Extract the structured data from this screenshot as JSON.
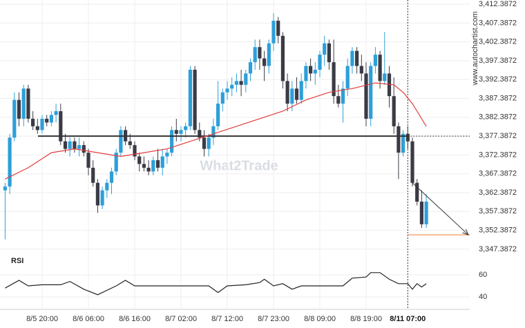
{
  "chart_data": {
    "type": "candlestick",
    "categories": [
      null,
      null,
      null,
      null,
      null,
      null,
      null,
      null,
      "8/5 20:00",
      null,
      null,
      null,
      null,
      null,
      null,
      null,
      null,
      null,
      "8/6 06:00",
      null,
      null,
      null,
      null,
      null,
      null,
      null,
      null,
      null,
      "8/6 16:00",
      null,
      null,
      null,
      null,
      null,
      null,
      null,
      null,
      null,
      "8/7 02:00",
      null,
      null,
      null,
      null,
      null,
      null,
      null,
      null,
      null,
      "8/7 12:00",
      null,
      null,
      null,
      null,
      null,
      null,
      null,
      null,
      null,
      "8/7 23:00",
      null,
      null,
      null,
      null,
      null,
      null,
      null,
      null,
      null,
      "8/8 09:00",
      null,
      null,
      null,
      null,
      null,
      null,
      null,
      null,
      null,
      "8/8 19:00",
      null,
      null,
      null,
      null,
      null,
      null,
      null,
      null,
      "8/11 07:00",
      null,
      null,
      null,
      null
    ],
    "open": [
      3363,
      3364,
      3377,
      3387,
      3382,
      3390,
      3382,
      3380,
      3379,
      3382,
      3381,
      3383,
      3384,
      3376,
      3374,
      3376,
      3374,
      3375,
      3373,
      3369,
      3365,
      3359,
      3363,
      3365,
      3368,
      3373,
      3379,
      3376,
      3375,
      3372,
      3370,
      3369,
      3368,
      3371,
      3369,
      3372,
      3373,
      3379,
      3378,
      3379,
      3380,
      3395,
      3379,
      3377,
      3374,
      3377,
      3380,
      3386,
      3389,
      3390,
      3391,
      3392,
      3391,
      3394,
      3397,
      3401,
      3398,
      3396,
      3402,
      3408,
      3404,
      3392,
      3386,
      3390,
      3387,
      3392,
      3396,
      3394,
      3395,
      3399,
      3402,
      3397,
      3388,
      3386,
      3390,
      3396,
      3400,
      3396,
      3394,
      3382,
      3396,
      3399,
      3392,
      3394,
      3388,
      3380,
      3373,
      3378,
      3376,
      3365,
      3360,
      3354
    ],
    "high": [
      3365,
      3378,
      3389,
      3389,
      3391,
      3391,
      3384,
      3382,
      3383,
      3383,
      3384,
      3386,
      3386,
      3378,
      3377,
      3377,
      3377,
      3376,
      3374,
      3371,
      3366,
      3364,
      3366,
      3369,
      3374,
      3380,
      3380,
      3378,
      3376,
      3373,
      3372,
      3371,
      3372,
      3374,
      3374,
      3374,
      3380,
      3382,
      3380,
      3381,
      3396,
      3396,
      3381,
      3379,
      3378,
      3382,
      3392,
      3390,
      3392,
      3393,
      3394,
      3395,
      3395,
      3398,
      3403,
      3403,
      3400,
      3403,
      3410,
      3409,
      3405,
      3394,
      3392,
      3393,
      3394,
      3397,
      3398,
      3397,
      3400,
      3404,
      3403,
      3403,
      3391,
      3392,
      3398,
      3401,
      3401,
      3399,
      3397,
      3397,
      3401,
      3400,
      3405,
      3396,
      3393,
      3381,
      3379,
      3380,
      3377,
      3366,
      3363,
      3362
    ],
    "low": [
      3350,
      3362,
      3376,
      3380,
      3380,
      3381,
      3379,
      3378,
      3378,
      3380,
      3380,
      3381,
      3375,
      3373,
      3372,
      3373,
      3372,
      3372,
      3367,
      3364,
      3357,
      3358,
      3361,
      3362,
      3367,
      3372,
      3375,
      3374,
      3371,
      3368,
      3368,
      3367,
      3367,
      3368,
      3367,
      3370,
      3372,
      3376,
      3376,
      3377,
      3379,
      3378,
      3376,
      3372,
      3372,
      3375,
      3379,
      3384,
      3387,
      3388,
      3389,
      3388,
      3389,
      3392,
      3395,
      3395,
      3392,
      3394,
      3400,
      3402,
      3390,
      3384,
      3384,
      3386,
      3386,
      3390,
      3392,
      3391,
      3393,
      3396,
      3395,
      3386,
      3385,
      3381,
      3388,
      3394,
      3394,
      3392,
      3380,
      3380,
      3394,
      3390,
      3391,
      3385,
      3378,
      3366,
      3372,
      3374,
      3364,
      3359,
      3353,
      3353
    ],
    "close": [
      3364,
      3377,
      3387,
      3382,
      3390,
      3382,
      3380,
      3379,
      3382,
      3381,
      3383,
      3384,
      3376,
      3374,
      3376,
      3374,
      3375,
      3373,
      3369,
      3365,
      3359,
      3363,
      3365,
      3368,
      3373,
      3379,
      3376,
      3375,
      3372,
      3370,
      3369,
      3368,
      3371,
      3369,
      3372,
      3373,
      3379,
      3378,
      3379,
      3380,
      3395,
      3379,
      3377,
      3374,
      3377,
      3380,
      3386,
      3389,
      3390,
      3391,
      3392,
      3391,
      3394,
      3397,
      3401,
      3398,
      3396,
      3402,
      3408,
      3404,
      3392,
      3386,
      3390,
      3387,
      3392,
      3396,
      3394,
      3395,
      3399,
      3402,
      3397,
      3388,
      3386,
      3390,
      3396,
      3400,
      3396,
      3394,
      3382,
      3396,
      3399,
      3392,
      3394,
      3388,
      3380,
      3373,
      3378,
      3376,
      3365,
      3360,
      3354,
      3360
    ],
    "up_color": "#2d9fd9",
    "down_color": "#3b3b45",
    "ema": {
      "color": "#e23b3b",
      "x": [
        0,
        5,
        10,
        15,
        20,
        25,
        30,
        35,
        40,
        45,
        50,
        55,
        60,
        65,
        70,
        75,
        80,
        84,
        86,
        88,
        91
      ],
      "values": [
        3366,
        3369,
        3373,
        3374,
        3373,
        3372,
        3373,
        3374,
        3376,
        3378,
        3380,
        3382,
        3384,
        3387,
        3389,
        3390,
        3391.5,
        3391,
        3389,
        3386,
        3380
      ]
    },
    "resistance": 3377.3872,
    "target": 3351.2,
    "target_color": "#f08a4b",
    "ylim": [
      3344.8,
      3413.5
    ],
    "yticks": [
      {
        "value": 3412.3872,
        "label": "3,412.3872"
      },
      {
        "value": 3407.3872,
        "label": "3,407.3872"
      },
      {
        "value": 3402.3872,
        "label": "3,402.3872"
      },
      {
        "value": 3397.3872,
        "label": "3,397.3872"
      },
      {
        "value": 3392.3872,
        "label": "3,392.3872"
      },
      {
        "value": 3387.3872,
        "label": "3,387.3872"
      },
      {
        "value": 3382.3872,
        "label": "3,382.3872"
      },
      {
        "value": 3377.3872,
        "label": "3,377.3872"
      },
      {
        "value": 3372.3872,
        "label": "3,372.3872"
      },
      {
        "value": 3367.3872,
        "label": "3,367.3872"
      },
      {
        "value": 3362.3872,
        "label": "3,362.3872"
      },
      {
        "value": 3357.3872,
        "label": "3,357.3872"
      },
      {
        "value": 3352.3872,
        "label": "3,352.3872"
      },
      {
        "value": 3347.3872,
        "label": "3,347.3872"
      }
    ],
    "grid": true,
    "watermark": "What2Trade",
    "site": "www.autochartist.com",
    "rsi": {
      "label": "RSI",
      "color": "#222222",
      "x": [
        0,
        3,
        5,
        8,
        12,
        14,
        17,
        20,
        24,
        26,
        28,
        44,
        46,
        48,
        52,
        55,
        56,
        58,
        60,
        62,
        64,
        70,
        73,
        75,
        78,
        79,
        81,
        83,
        85,
        87,
        88,
        89,
        90,
        91
      ],
      "values": [
        48,
        55,
        50,
        51,
        51,
        54,
        47,
        42,
        50,
        55,
        50,
        50,
        44,
        50,
        51,
        53,
        56,
        50,
        52,
        47,
        50,
        50,
        50,
        57,
        58,
        62,
        62,
        56,
        52,
        52,
        47,
        52,
        49,
        52
      ],
      "ylim": [
        28.75,
        72.5
      ],
      "yticks": [
        60,
        40
      ]
    }
  }
}
